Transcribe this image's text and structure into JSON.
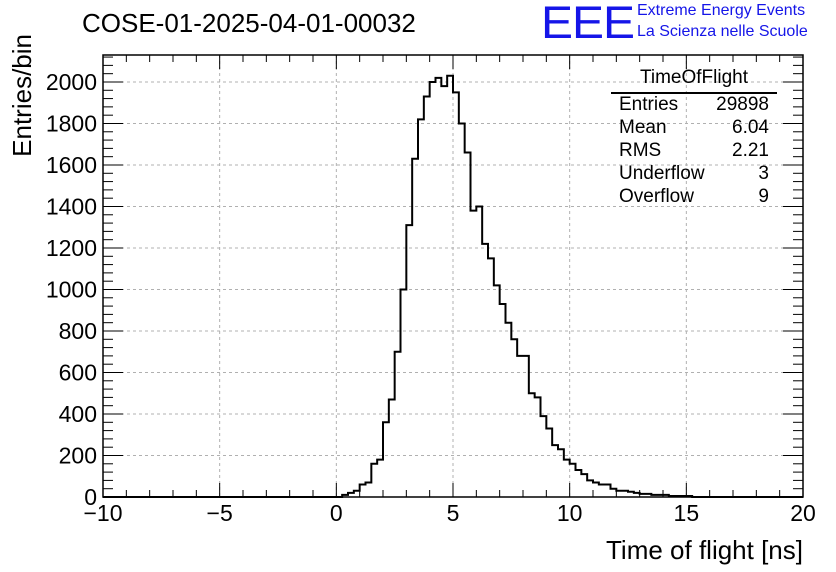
{
  "header": {
    "run_title": "COSE-01-2025-04-01-00032",
    "logo_text": "EEE",
    "org_line1": "Extreme Energy Events",
    "org_line2": "La Scienza nelle Scuole"
  },
  "stats_box": {
    "title": "TimeOfFlight",
    "rows": [
      {
        "label": "Entries",
        "value": "29898"
      },
      {
        "label": "Mean",
        "value": "6.04"
      },
      {
        "label": "RMS",
        "value": "2.21"
      },
      {
        "label": "Underflow",
        "value": "3"
      },
      {
        "label": "Overflow",
        "value": "9"
      }
    ]
  },
  "colors": {
    "logo": "#1515e8",
    "line": "#000000",
    "grid": "#b0b0b0"
  },
  "chart_data": {
    "type": "histogram",
    "xlabel": "Time of flight [ns]",
    "ylabel": "Entries/bin",
    "xlim": [
      -10,
      20
    ],
    "ylim": [
      0,
      2130
    ],
    "x_ticks": [
      -10,
      -5,
      0,
      5,
      10,
      15,
      20
    ],
    "y_ticks": [
      0,
      200,
      400,
      600,
      800,
      1000,
      1200,
      1400,
      1600,
      1800,
      2000
    ],
    "grid": true,
    "bin_width": 0.25,
    "bin_start": 0.25,
    "values": [
      10,
      20,
      30,
      60,
      70,
      160,
      180,
      360,
      470,
      700,
      1000,
      1310,
      1630,
      1820,
      1930,
      2000,
      2020,
      1980,
      2030,
      1950,
      1800,
      1660,
      1380,
      1400,
      1220,
      1150,
      1020,
      930,
      840,
      760,
      680,
      680,
      500,
      480,
      390,
      330,
      250,
      230,
      180,
      160,
      130,
      110,
      80,
      70,
      60,
      60,
      40,
      30,
      30,
      25,
      20,
      15,
      15,
      10,
      10,
      10,
      5,
      5,
      5,
      5
    ]
  }
}
